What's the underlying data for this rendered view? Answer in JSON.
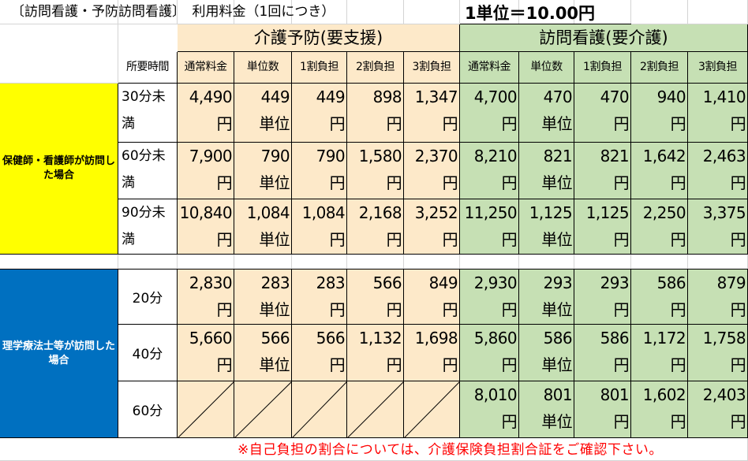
{
  "title": "〔訪問看護・予防訪問看護〕　利用料金（1回につき）",
  "unit_price": "1単位＝10.00円",
  "groups": {
    "prevention": "介護予防(要支援)",
    "care": "訪問看護(要介護)"
  },
  "headers": {
    "time": "所要時間",
    "cols": [
      "通常料金",
      "単位数",
      "1割負担",
      "2割負担",
      "3割負担"
    ]
  },
  "units": {
    "yen": "円",
    "tanni": "単位"
  },
  "sections": {
    "nurse": "保健師・看護師が訪問した場合",
    "therapist": "理学療法士等が訪問した場合"
  },
  "rows_nurse": [
    {
      "time": "30分未満",
      "prevention": [
        "4,490",
        "449",
        "449",
        "898",
        "1,347"
      ],
      "care": [
        "4,700",
        "470",
        "470",
        "940",
        "1,410"
      ]
    },
    {
      "time": "60分未満",
      "prevention": [
        "7,900",
        "790",
        "790",
        "1,580",
        "2,370"
      ],
      "care": [
        "8,210",
        "821",
        "821",
        "1,642",
        "2,463"
      ]
    },
    {
      "time": "90分未満",
      "prevention": [
        "10,840",
        "1,084",
        "1,084",
        "2,168",
        "3,252"
      ],
      "care": [
        "11,250",
        "1,125",
        "1,125",
        "2,250",
        "3,375"
      ]
    }
  ],
  "rows_therapist": [
    {
      "time": "20分",
      "prevention": [
        "2,830",
        "283",
        "283",
        "566",
        "849"
      ],
      "care": [
        "2,930",
        "293",
        "293",
        "586",
        "879"
      ]
    },
    {
      "time": "40分",
      "prevention": [
        "5,660",
        "566",
        "566",
        "1,132",
        "1,698"
      ],
      "care": [
        "5,860",
        "586",
        "586",
        "1,172",
        "1,758"
      ]
    },
    {
      "time": "60分",
      "prevention": null,
      "care": [
        "8,010",
        "801",
        "801",
        "1,602",
        "2,403"
      ]
    }
  ],
  "note": "※自己負担の割合については、介護保険負担割合証をご確認下さい。"
}
